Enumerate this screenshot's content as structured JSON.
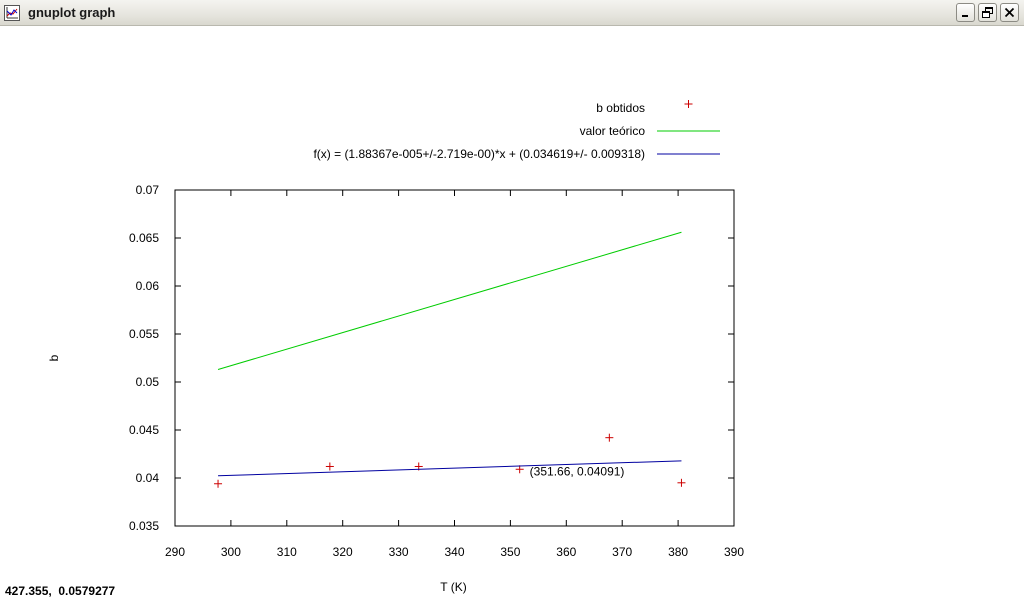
{
  "window": {
    "title": "gnuplot graph",
    "icon": "gnuplot-app-icon",
    "controls": [
      "minimize-icon",
      "restore-icon",
      "close-icon"
    ]
  },
  "status": {
    "coordinates": "427.355,  0.0579277"
  },
  "chart_data": {
    "type": "line",
    "title": "",
    "xlabel": "T (K)",
    "ylabel": "b",
    "xlim": [
      290,
      390
    ],
    "ylim": [
      0.035,
      0.07
    ],
    "x_ticks": [
      290,
      300,
      310,
      320,
      330,
      340,
      350,
      360,
      370,
      380,
      390
    ],
    "x_tick_labels": [
      "290",
      "300",
      "310",
      "320",
      "330",
      "340",
      "350",
      "360",
      "370",
      "380",
      "390"
    ],
    "y_ticks": [
      0.035,
      0.04,
      0.045,
      0.05,
      0.055,
      0.06,
      0.065,
      0.07
    ],
    "y_tick_labels": [
      "0.035",
      "0.04",
      "0.045",
      "0.05",
      "0.055",
      "0.06",
      "0.065",
      "0.07"
    ],
    "grid": false,
    "legend_position": "top-right, outside above plot",
    "series": [
      {
        "name": "b obtidos",
        "style": "points",
        "marker": "plus",
        "color": "#cc0000",
        "x": [
          297.7,
          317.7,
          333.6,
          351.66,
          367.7,
          380.6
        ],
        "y": [
          0.0394,
          0.0412,
          0.0412,
          0.04091,
          0.0442,
          0.0395
        ]
      },
      {
        "name": "valor teórico",
        "style": "line",
        "color": "#00cc00",
        "x": [
          297.7,
          380.6
        ],
        "y": [
          0.0513,
          0.0656
        ]
      },
      {
        "name": "f(x) = (1.88367e-005+/-2.719e-00)*x + (0.034619+/- 0.009318)",
        "style": "line",
        "color": "#0000a0",
        "x": [
          297.7,
          380.6
        ],
        "y": [
          0.04023,
          0.04179
        ]
      }
    ],
    "annotations": [
      {
        "text": "(351.66, 0.04091)",
        "x": 351.66,
        "y": 0.04091
      }
    ]
  }
}
